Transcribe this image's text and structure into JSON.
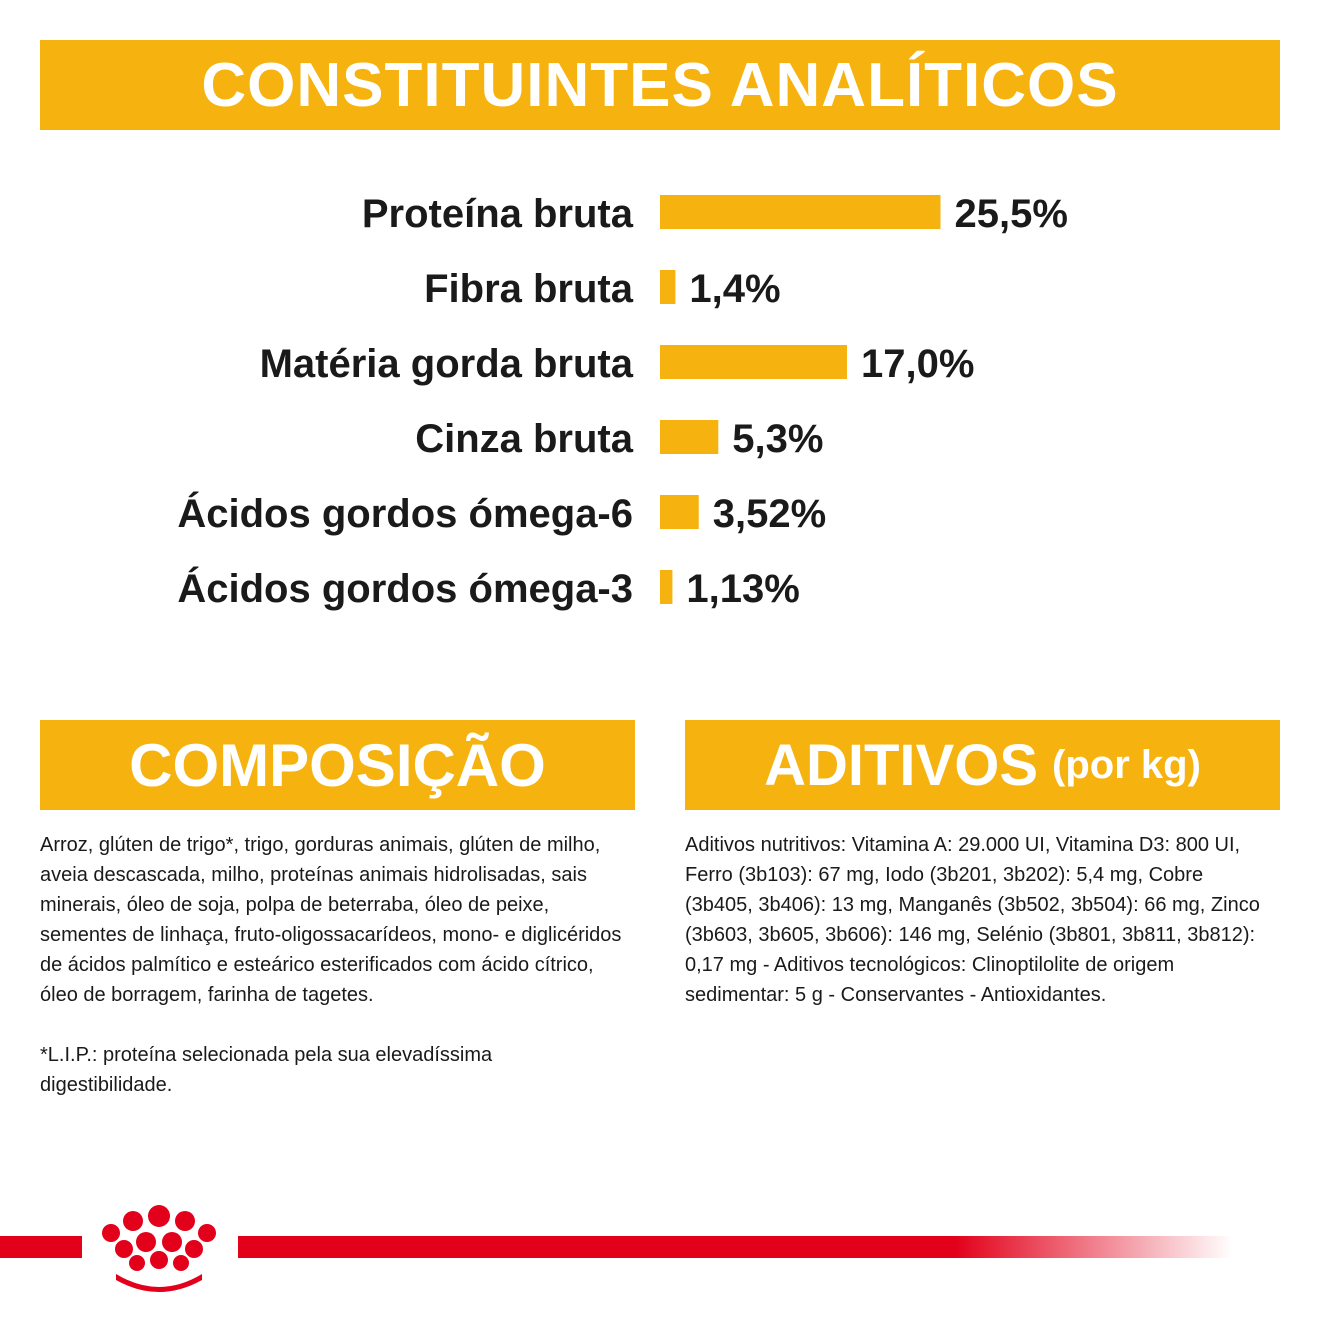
{
  "header": {
    "title": "CONSTITUINTES ANALÍTICOS"
  },
  "chart_data": {
    "type": "bar",
    "orientation": "horizontal",
    "title": "CONSTITUINTES ANALÍTICOS",
    "categories": [
      "Proteína bruta",
      "Fibra bruta",
      "Matéria gorda bruta",
      "Cinza bruta",
      "Ácidos gordos ómega-6",
      "Ácidos gordos ómega-3"
    ],
    "values": [
      25.5,
      1.4,
      17.0,
      5.3,
      3.52,
      1.13
    ],
    "value_labels": [
      "25,5%",
      "1,4%",
      "17,0%",
      "5,3%",
      "3,52%",
      "1,13%"
    ],
    "bar_color": "#f6b20f"
  },
  "composition": {
    "title": "COMPOSIÇÃO",
    "text": "Arroz, glúten de trigo*, trigo, gorduras animais, glúten de milho, aveia descascada, milho, proteínas animais hidrolisadas, sais minerais, óleo de soja, polpa de beterraba, óleo de peixe, sementes de linhaça, fruto-oligossacarídeos, mono- e diglicéridos de ácidos palmítico e esteárico esterificados com ácido cítrico, óleo de borragem, farinha de tagetes.",
    "footnote": "*L.I.P.: proteína selecionada pela sua elevadíssima digestibilidade."
  },
  "additives": {
    "title": "ADITIVOS",
    "subtitle": "(por kg)",
    "text": "Aditivos nutritivos: Vitamina A: 29.000 UI, Vitamina D3: 800 UI, Ferro (3b103): 67 mg, Iodo (3b201, 3b202): 5,4 mg, Cobre (3b405, 3b406): 13 mg, Manganês (3b502, 3b504): 66 mg, Zinco (3b603, 3b605, 3b606): 146 mg, Selénio (3b801, 3b811, 3b812): 0,17 mg - Aditivos tecnológicos: Clinoptilolite de origem sedimentar: 5 g - Conservantes - Antioxidantes."
  },
  "colors": {
    "accent": "#f6b20f",
    "brand_red": "#e2001a",
    "text": "#1a1a1a"
  },
  "brand": {
    "logo": "royal-canin-crown-logo"
  }
}
